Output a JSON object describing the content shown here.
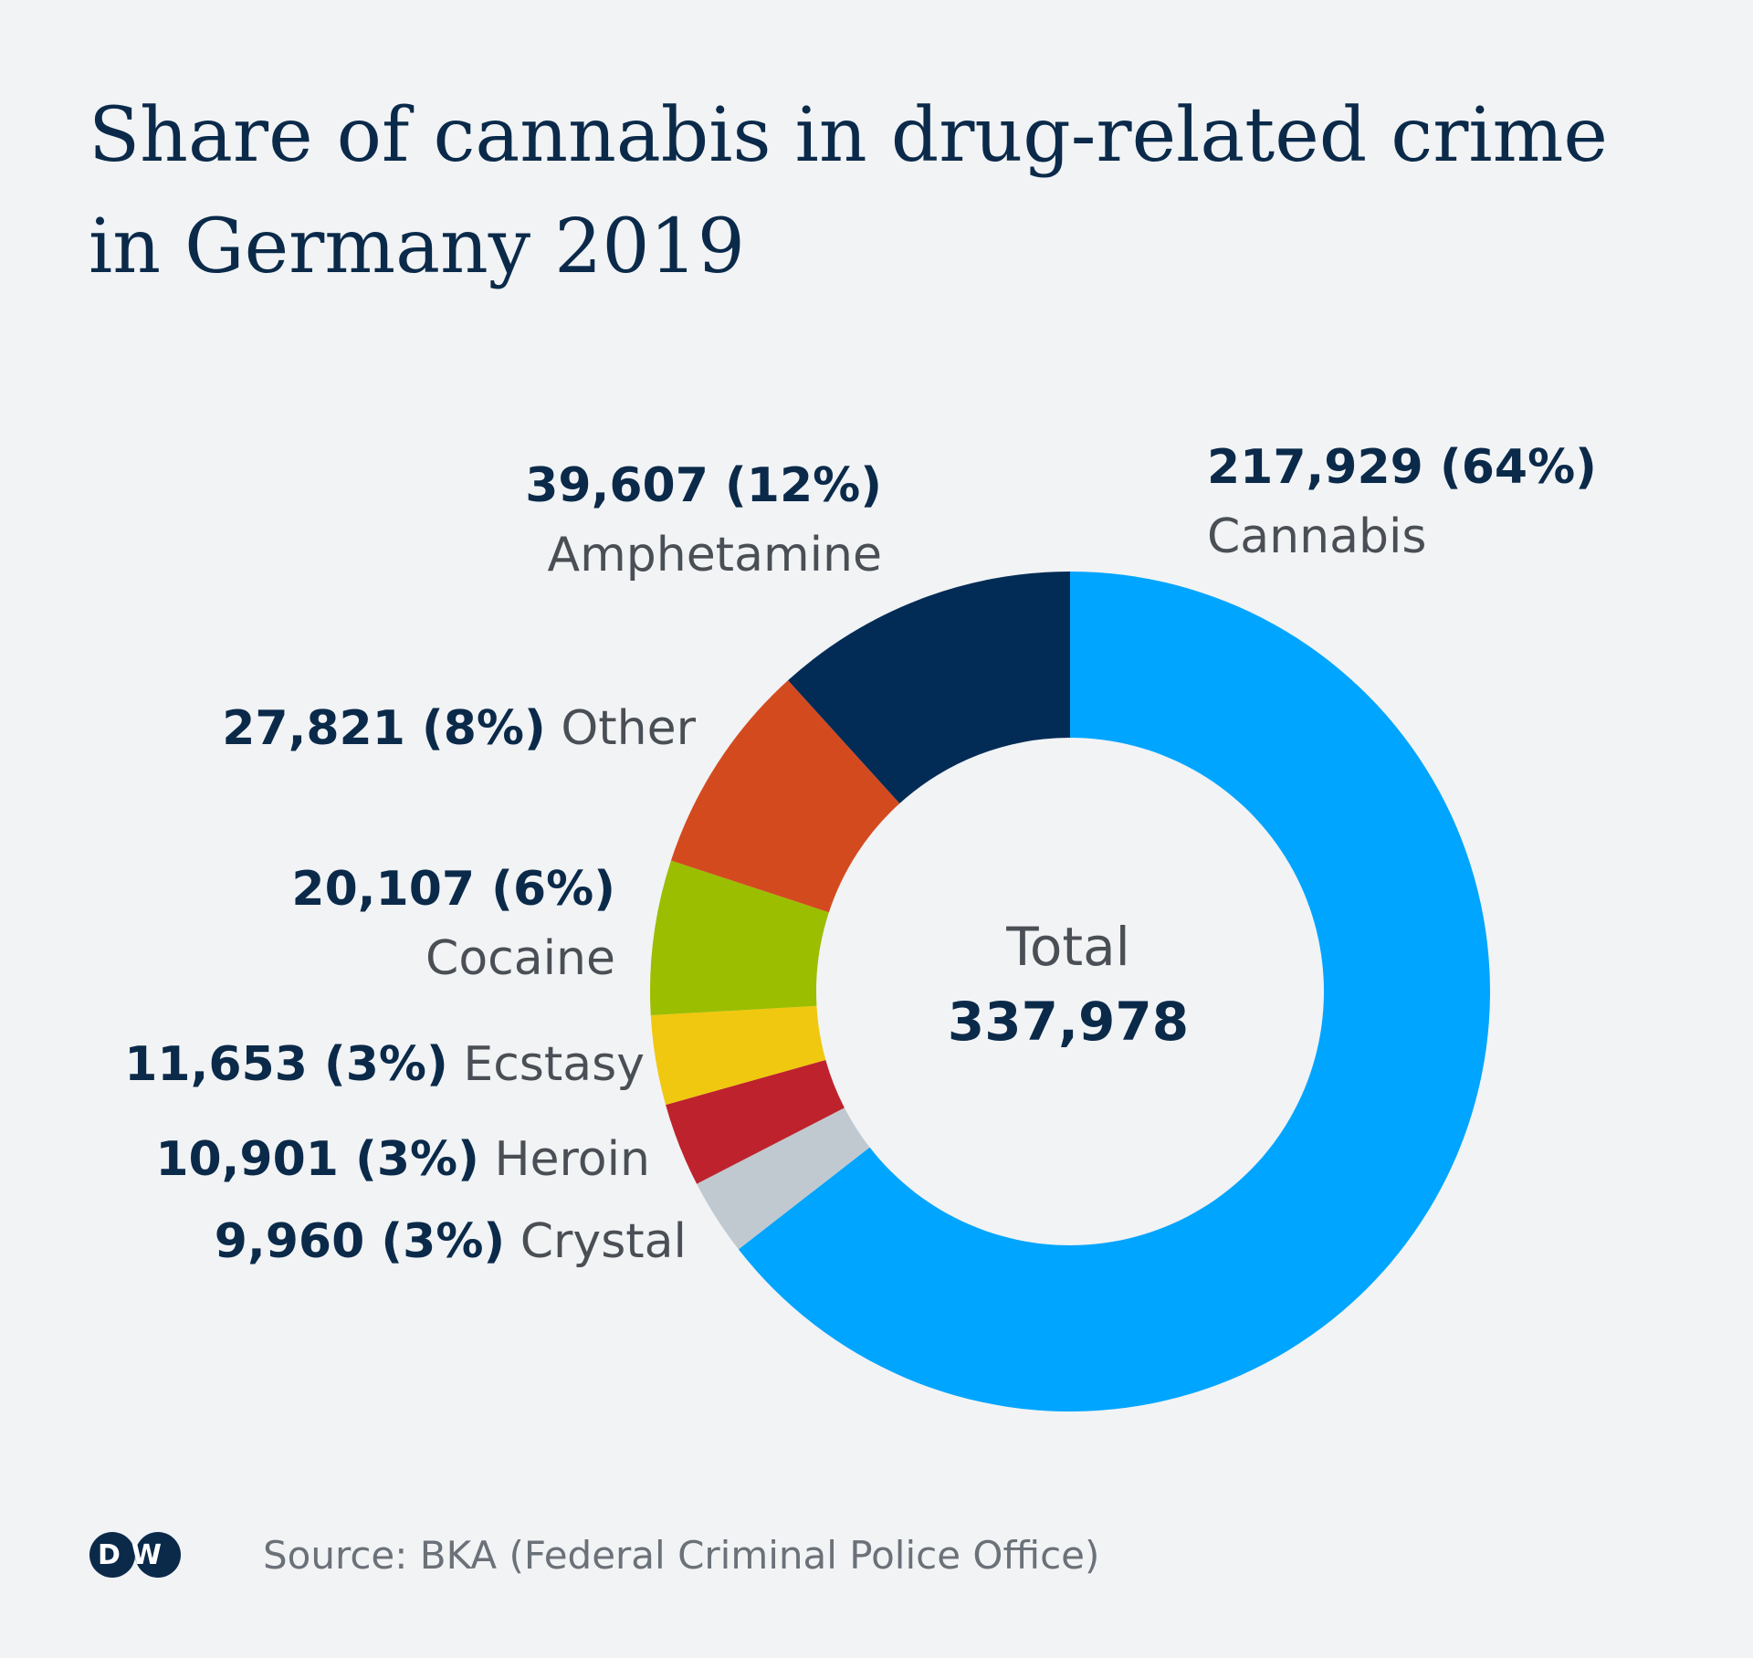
{
  "title": "Share of cannabis in drug-related crime in Germany 2019",
  "source": "Source: BKA (Federal Criminal Police Office)",
  "logo_text": "DW",
  "chart_data": {
    "type": "pie",
    "donut": true,
    "slices": [
      {
        "name": "Cannabis",
        "value": 217929,
        "label": "217,929 (64%)",
        "color": "#00a5ff"
      },
      {
        "name": "Crystal",
        "value": 9960,
        "label": "9,960 (3%)",
        "color": "#c1c9d0"
      },
      {
        "name": "Heroin",
        "value": 10901,
        "label": "10,901 (3%)",
        "color": "#be232d"
      },
      {
        "name": "Ecstasy",
        "value": 11653,
        "label": "11,653 (3%)",
        "color": "#f0c80f"
      },
      {
        "name": "Cocaine",
        "value": 20107,
        "label": "20,107 (6%)",
        "color": "#9bbe00"
      },
      {
        "name": "Other",
        "value": 27821,
        "label": "27,821 (8%)",
        "color": "#d44a1f"
      },
      {
        "name": "Amphetamine",
        "value": 39607,
        "label": "39,607 (12%)",
        "color": "#022c56"
      }
    ],
    "center_label": "Total",
    "center_value": "337,978"
  }
}
